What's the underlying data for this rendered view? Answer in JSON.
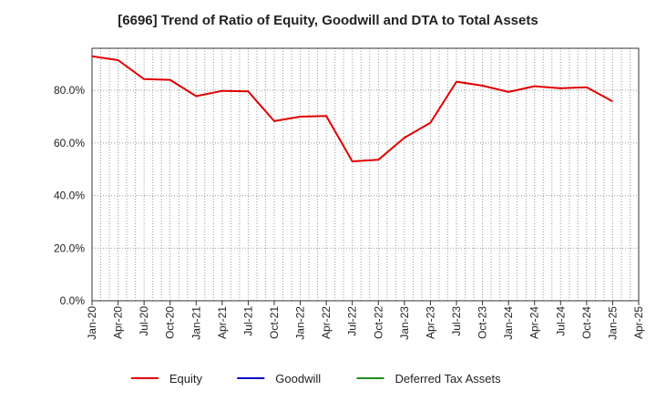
{
  "chart_data": {
    "type": "line",
    "title": "[6696]  Trend of Ratio of Equity, Goodwill and DTA to Total Assets",
    "xlabel": "",
    "ylabel": "",
    "ylim": [
      0,
      96
    ],
    "y_ticks": [
      "0.0%",
      "20.0%",
      "40.0%",
      "60.0%",
      "80.0%"
    ],
    "y_tick_values": [
      0,
      20,
      40,
      60,
      80
    ],
    "x_ticks": [
      "Jan-20",
      "Apr-20",
      "Jul-20",
      "Oct-20",
      "Jan-21",
      "Apr-21",
      "Jul-21",
      "Oct-21",
      "Jan-22",
      "Apr-22",
      "Jul-22",
      "Oct-22",
      "Jan-23",
      "Apr-23",
      "Jul-23",
      "Oct-23",
      "Jan-24",
      "Apr-24",
      "Jul-24",
      "Oct-24",
      "Jan-25",
      "Apr-25"
    ],
    "grid": true,
    "legend_position": "bottom",
    "series": [
      {
        "name": "Equity",
        "color": "#e00000",
        "points": [
          [
            0,
            93.0
          ],
          [
            3,
            91.5
          ],
          [
            6,
            84.3
          ],
          [
            9,
            84.0
          ],
          [
            12,
            77.8
          ],
          [
            15,
            79.8
          ],
          [
            18,
            79.6
          ],
          [
            21,
            68.3
          ],
          [
            24,
            70.0
          ],
          [
            27,
            70.3
          ],
          [
            30,
            53.0
          ],
          [
            33,
            53.6
          ],
          [
            36,
            62.0
          ],
          [
            39,
            67.7
          ],
          [
            42,
            83.3
          ],
          [
            45,
            81.8
          ],
          [
            48,
            79.4
          ],
          [
            51,
            81.6
          ],
          [
            54,
            80.8
          ],
          [
            57,
            81.2
          ],
          [
            60,
            75.8
          ]
        ]
      },
      {
        "name": "Goodwill",
        "color": "#0000cc",
        "points": []
      },
      {
        "name": "Deferred Tax Assets",
        "color": "#228b22",
        "points": []
      }
    ]
  }
}
